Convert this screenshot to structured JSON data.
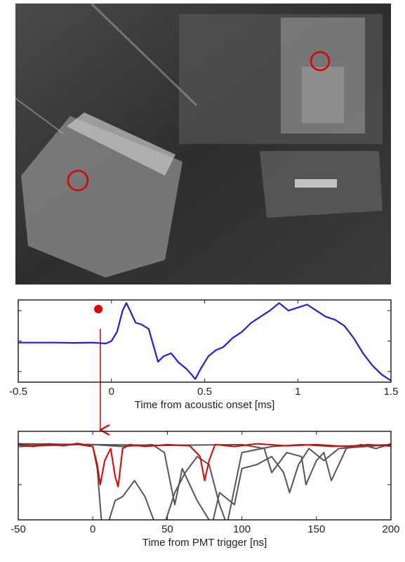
{
  "chart_data": [
    {
      "type": "line",
      "xlabel": "Time from acoustic onset [ms]",
      "xlim": [
        -0.5,
        1.5
      ],
      "xticks": [
        -0.5,
        0,
        0.5,
        1,
        1.5
      ],
      "ylim": [
        -1.35,
        1.35
      ],
      "yticks": [
        -1,
        0,
        1
      ],
      "show_ytick_labels": false,
      "series": [
        {
          "color": "#1f1fe0",
          "x": [
            -0.5,
            -0.4,
            -0.3,
            -0.2,
            -0.1,
            -0.03,
            0.0,
            0.03,
            0.06,
            0.08,
            0.1,
            0.13,
            0.16,
            0.2,
            0.25,
            0.28,
            0.32,
            0.36,
            0.4,
            0.43,
            0.45,
            0.48,
            0.52,
            0.56,
            0.6,
            0.65,
            0.7,
            0.75,
            0.8,
            0.85,
            0.9,
            0.95,
            1.0,
            1.05,
            1.1,
            1.15,
            1.2,
            1.25,
            1.3,
            1.35,
            1.4,
            1.45,
            1.5
          ],
          "values": [
            -0.05,
            -0.05,
            -0.05,
            -0.06,
            -0.05,
            -0.08,
            0.0,
            0.3,
            1.0,
            1.25,
            1.0,
            0.6,
            0.55,
            0.4,
            -0.68,
            -0.5,
            -0.4,
            -0.7,
            -0.9,
            -1.1,
            -1.25,
            -0.9,
            -0.5,
            -0.3,
            -0.2,
            0.1,
            0.3,
            0.6,
            0.8,
            1.0,
            1.25,
            1.0,
            1.1,
            1.2,
            1.0,
            0.8,
            0.7,
            0.5,
            0.1,
            -0.4,
            -0.8,
            -1.1,
            -1.3
          ]
        }
      ],
      "markers": [
        {
          "x": -0.07,
          "y": 1.05,
          "color": "#e00000"
        }
      ]
    },
    {
      "type": "line",
      "xlabel": "Time from PMT trigger [ns]",
      "xlim": [
        -50,
        200
      ],
      "xticks": [
        -50,
        0,
        50,
        100,
        150,
        200
      ],
      "ylim": [
        -1.88,
        0.33
      ],
      "yticks": [
        -1,
        0
      ],
      "show_ytick_labels": false,
      "series": [
        {
          "color": "#555555",
          "x": [
            -50,
            -10,
            0,
            3,
            6,
            10,
            15,
            20,
            28,
            35,
            42,
            48,
            55,
            62,
            70,
            78,
            85,
            90,
            100,
            120,
            140,
            160,
            200
          ],
          "values": [
            -0.05,
            0,
            -0.05,
            -0.6,
            -2.0,
            -2.0,
            -1.4,
            -1.3,
            -0.9,
            -1.3,
            -2.0,
            -2.0,
            -1.2,
            -0.7,
            -0.3,
            -0.5,
            -1.5,
            -2,
            -0.2,
            -0.05,
            0,
            -0.05,
            0
          ]
        },
        {
          "color": "#555555",
          "x": [
            -50,
            0,
            20,
            40,
            48,
            55,
            60,
            65,
            70,
            80,
            85,
            95,
            100,
            110,
            120,
            128,
            132,
            138,
            145,
            155,
            165,
            200
          ],
          "values": [
            0,
            0,
            -0.05,
            0,
            -0.2,
            -1.5,
            -0.6,
            -1.0,
            -1.4,
            -2.0,
            -1.2,
            -1.5,
            -0.6,
            -0.5,
            -0.3,
            -0.7,
            -1.2,
            -0.5,
            -0.1,
            -0.4,
            -0.1,
            0
          ]
        },
        {
          "color": "#555555",
          "x": [
            -50,
            50,
            100,
            115,
            120,
            130,
            140,
            143,
            150,
            155,
            160,
            170,
            180,
            190,
            200
          ],
          "values": [
            0.02,
            -0.02,
            0,
            -0.1,
            -0.7,
            -0.2,
            -0.3,
            -1.0,
            -0.4,
            -0.2,
            -0.9,
            -0.1,
            0,
            -0.1,
            0.02
          ]
        },
        {
          "color": "#e00000",
          "x": [
            -50,
            -40,
            -30,
            -20,
            -10,
            0,
            3,
            5,
            8,
            12,
            15,
            17,
            20,
            25,
            35,
            50,
            65,
            72,
            75,
            78,
            82,
            95,
            110,
            130,
            150,
            170,
            185,
            200
          ],
          "values": [
            0,
            -0.05,
            0.02,
            -0.03,
            0.03,
            -0.05,
            -0.5,
            -1.0,
            -0.4,
            -0.1,
            -0.8,
            -1.05,
            -0.1,
            0.0,
            -0.05,
            0.0,
            -0.03,
            -0.3,
            -0.9,
            -0.4,
            0.0,
            -0.05,
            0.02,
            -0.03,
            0.0,
            -0.05,
            0.0,
            -0.04
          ]
        }
      ]
    }
  ]
}
